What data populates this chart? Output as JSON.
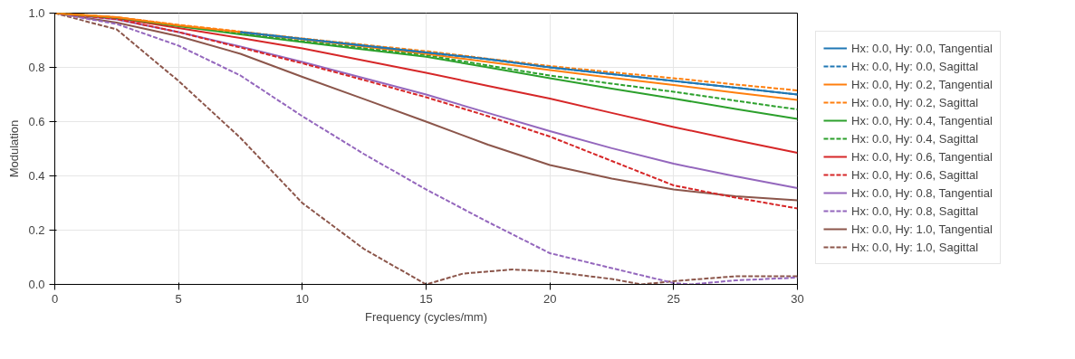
{
  "chart_data": {
    "type": "line",
    "xlabel": "Frequency (cycles/mm)",
    "ylabel": "Modulation",
    "x": [
      0,
      2.5,
      5,
      7.5,
      10,
      12.5,
      15,
      17.5,
      20,
      22.5,
      25,
      27.5,
      30
    ],
    "xlim": [
      0,
      30
    ],
    "ylim": [
      0,
      1
    ],
    "xticks": [
      0,
      5,
      10,
      15,
      20,
      25,
      30
    ],
    "yticks": [
      {
        "value": 0,
        "label": "0.0"
      },
      {
        "value": 0.2,
        "label": "0.2"
      },
      {
        "value": 0.4,
        "label": "0.4"
      },
      {
        "value": 0.6,
        "label": "0.6"
      },
      {
        "value": 0.8,
        "label": "0.8"
      },
      {
        "value": 1,
        "label": "1.0"
      }
    ],
    "grid": true,
    "legend": "right",
    "marker": "none",
    "series": [
      {
        "name": "Hx: 0.0, Hy: 0.0, Tangential",
        "color": "#1f77b4",
        "line_style": "solid",
        "x": [
          7.5,
          10,
          12.5,
          15,
          17.5,
          20,
          22.5,
          25,
          27.5,
          30
        ],
        "values": [
          0.93,
          0.905,
          0.88,
          0.855,
          0.83,
          0.8,
          0.775,
          0.75,
          0.725,
          0.7
        ]
      },
      {
        "name": "Hx: 0.0, Hy: 0.0, Sagittal",
        "color": "#1f77b4",
        "line_style": "dashed",
        "x": [
          7.5,
          10,
          12.5,
          15,
          17.5,
          20,
          22.5,
          25,
          27.5,
          30
        ],
        "values": [
          0.93,
          0.905,
          0.88,
          0.855,
          0.83,
          0.8,
          0.775,
          0.75,
          0.725,
          0.7
        ]
      },
      {
        "name": "Hx: 0.0, Hy: 0.2, Tangential",
        "color": "#ff7f0e",
        "line_style": "solid",
        "values": [
          1,
          0.985,
          0.955,
          0.93,
          0.903,
          0.877,
          0.85,
          0.82,
          0.79,
          0.762,
          0.735,
          0.707,
          0.68
        ]
      },
      {
        "name": "Hx: 0.0, Hy: 0.2, Sagittal",
        "color": "#ff7f0e",
        "line_style": "dashed",
        "values": [
          1,
          0.985,
          0.957,
          0.932,
          0.907,
          0.883,
          0.86,
          0.832,
          0.805,
          0.782,
          0.76,
          0.737,
          0.715
        ]
      },
      {
        "name": "Hx: 0.0, Hy: 0.4, Tangential",
        "color": "#2ca02c",
        "line_style": "solid",
        "values": [
          1,
          0.983,
          0.952,
          0.922,
          0.893,
          0.866,
          0.839,
          0.8,
          0.76,
          0.722,
          0.685,
          0.647,
          0.61
        ]
      },
      {
        "name": "Hx: 0.0, Hy: 0.4, Sagittal",
        "color": "#2ca02c",
        "line_style": "dashed",
        "values": [
          1,
          0.984,
          0.954,
          0.925,
          0.897,
          0.871,
          0.845,
          0.807,
          0.77,
          0.74,
          0.71,
          0.677,
          0.645
        ]
      },
      {
        "name": "Hx: 0.0, Hy: 0.6, Tangential",
        "color": "#d62728",
        "line_style": "solid",
        "values": [
          1,
          0.982,
          0.945,
          0.908,
          0.87,
          0.825,
          0.78,
          0.732,
          0.685,
          0.632,
          0.58,
          0.532,
          0.485
        ]
      },
      {
        "name": "Hx: 0.0, Hy: 0.6, Sagittal",
        "color": "#d62728",
        "line_style": "dashed",
        "values": [
          1,
          0.978,
          0.93,
          0.873,
          0.815,
          0.753,
          0.69,
          0.62,
          0.545,
          0.455,
          0.365,
          0.32,
          0.28
        ]
      },
      {
        "name": "Hx: 0.0, Hy: 0.8, Tangential",
        "color": "#9467bd",
        "line_style": "solid",
        "values": [
          1,
          0.977,
          0.93,
          0.877,
          0.82,
          0.76,
          0.7,
          0.632,
          0.565,
          0.502,
          0.445,
          0.398,
          0.355
        ]
      },
      {
        "name": "Hx: 0.0, Hy: 0.8, Sagittal",
        "color": "#9467bd",
        "line_style": "dashed",
        "x": [
          0,
          2.5,
          5,
          7.5,
          10,
          12.5,
          15,
          17.5,
          20,
          22.5,
          25,
          25.7,
          27.5,
          30
        ],
        "values": [
          1,
          0.96,
          0.88,
          0.77,
          0.62,
          0.48,
          0.35,
          0.23,
          0.115,
          0.06,
          0.005,
          0,
          0.015,
          0.025
        ]
      },
      {
        "name": "Hx: 0.0, Hy: 1.0, Tangential",
        "color": "#8c564b",
        "line_style": "solid",
        "values": [
          1,
          0.965,
          0.915,
          0.85,
          0.765,
          0.683,
          0.6,
          0.515,
          0.44,
          0.39,
          0.35,
          0.325,
          0.31
        ]
      },
      {
        "name": "Hx: 0.0, Hy: 1.0, Sagittal",
        "color": "#8c564b",
        "line_style": "dashed",
        "x": [
          0,
          2.5,
          5,
          7.5,
          10,
          12.5,
          15,
          16.5,
          18.5,
          20,
          22.5,
          23.7,
          25,
          27.5,
          30
        ],
        "values": [
          1,
          0.94,
          0.75,
          0.54,
          0.3,
          0.13,
          0,
          0.04,
          0.055,
          0.048,
          0.02,
          0,
          0.012,
          0.03,
          0.03
        ]
      }
    ]
  }
}
